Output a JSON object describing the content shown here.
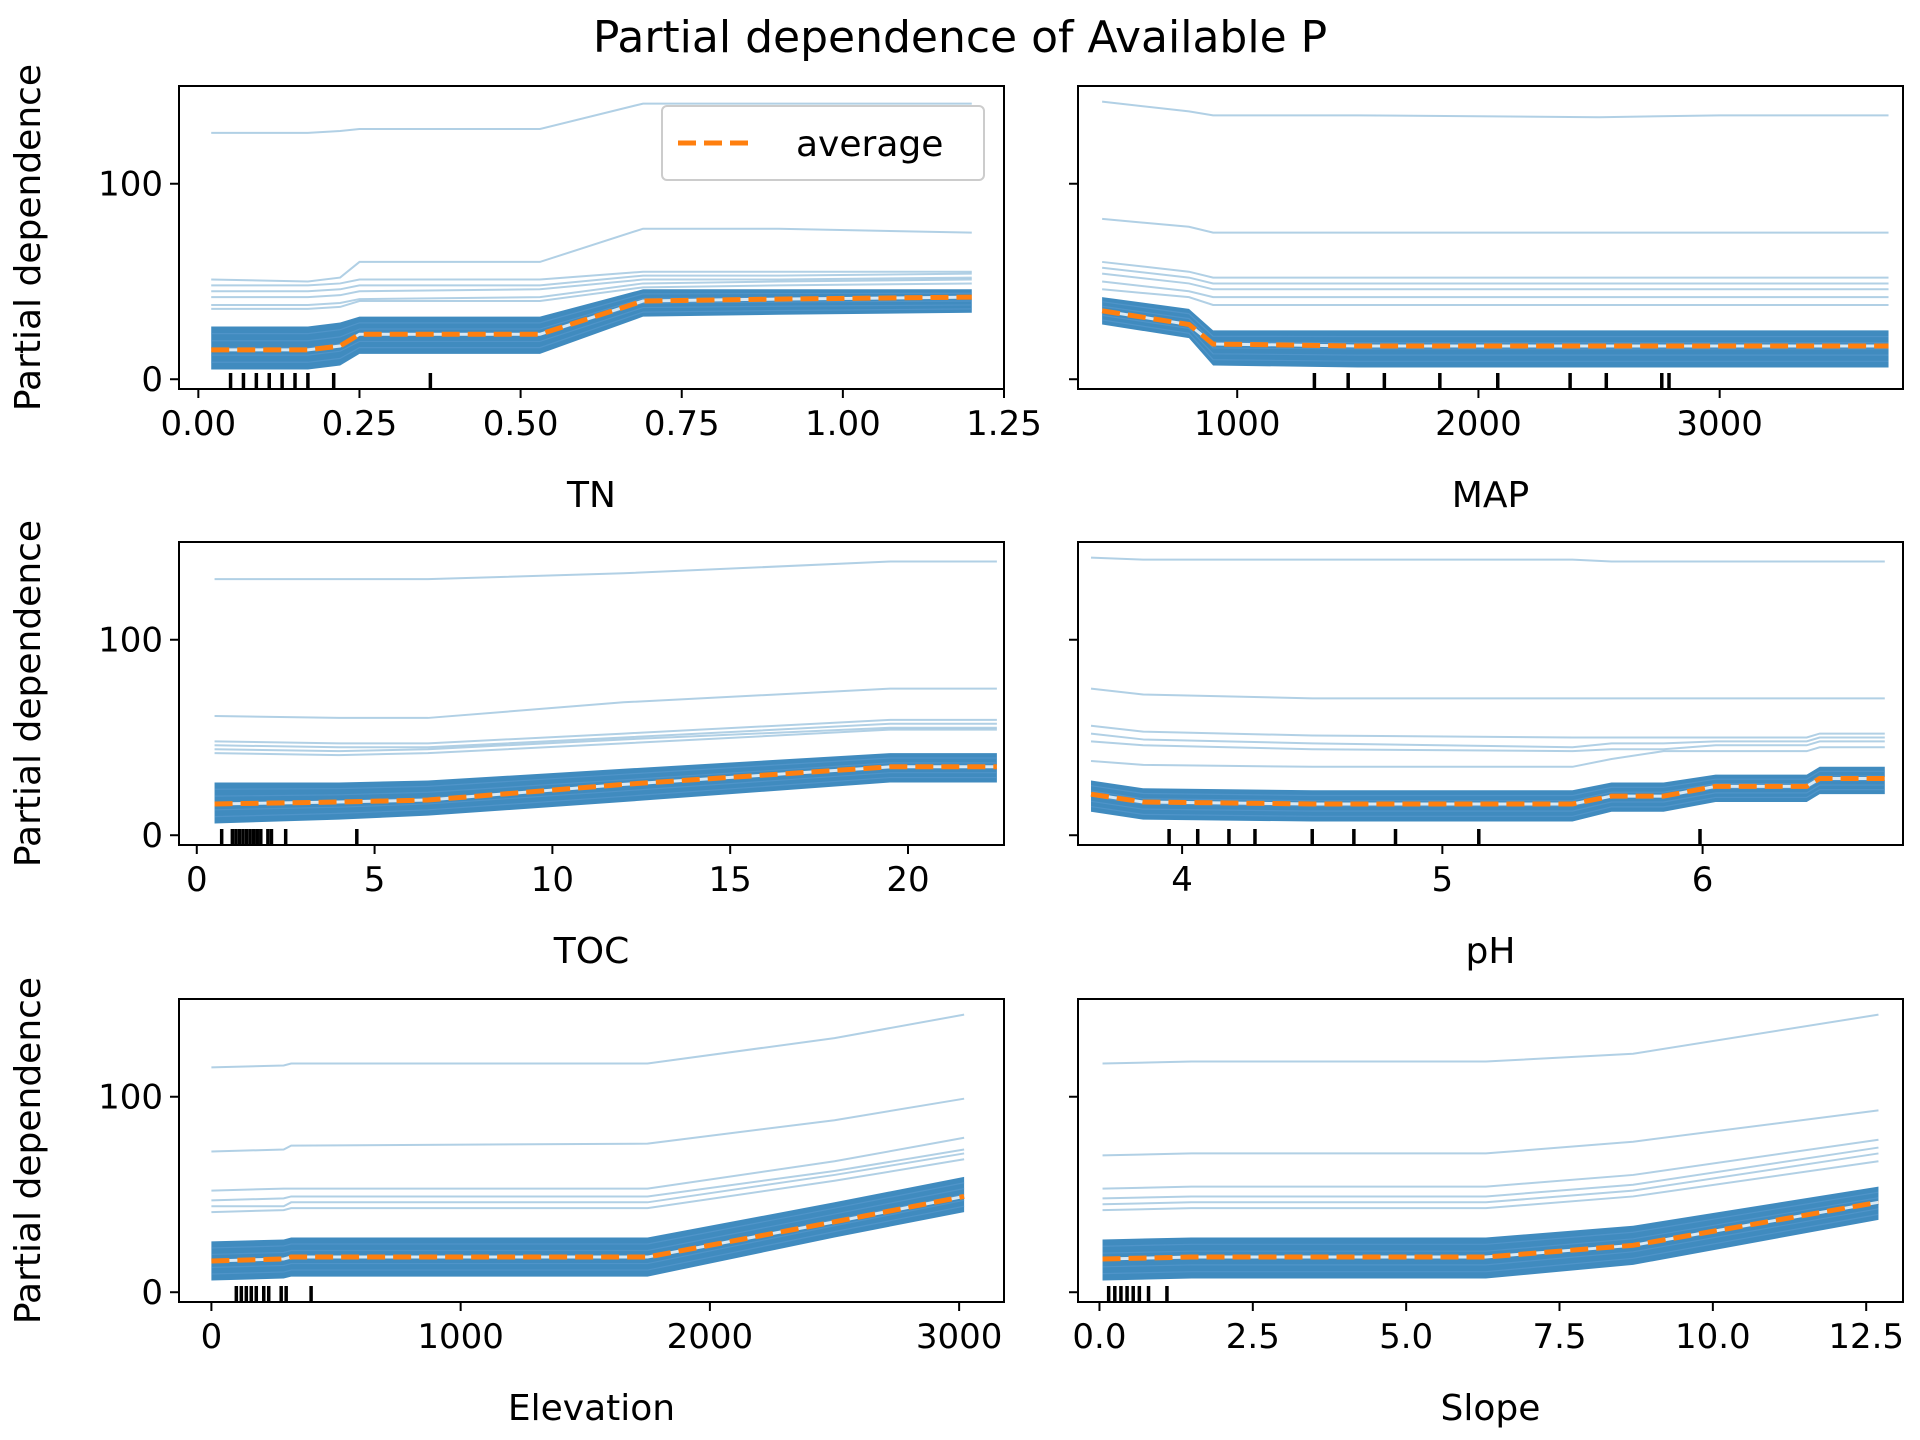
{
  "title": "Partial dependence of Available P",
  "colors": {
    "ice_line": "#1f77b4",
    "average_line": "#ff7f0e",
    "rug": "#000000",
    "axes": "#000000",
    "legend_border": "#cccccc"
  },
  "legend": {
    "label": "average",
    "placement": "upper-right",
    "panel": 0
  },
  "chart_data": [
    {
      "type": "line",
      "feature": "TN",
      "xlabel": "TN",
      "ylabel": "Partial dependence",
      "xlim": [
        -0.03,
        1.25
      ],
      "ylim": [
        -5,
        150
      ],
      "xticks": [
        0.0,
        0.25,
        0.5,
        0.75,
        1.0,
        1.25
      ],
      "xticklabels": [
        "0.00",
        "0.25",
        "0.50",
        "0.75",
        "1.00",
        "1.25"
      ],
      "yticks": [
        0,
        100
      ],
      "yticklabels": [
        "0",
        "100"
      ],
      "show_yticklabels": true,
      "x": [
        0.02,
        0.17,
        0.22,
        0.25,
        0.53,
        0.69,
        0.9,
        1.2
      ],
      "average": [
        15,
        15,
        17,
        23,
        23,
        40,
        41,
        42
      ],
      "ice_curves": [
        [
          126,
          126,
          127,
          128,
          128,
          141,
          141,
          141
        ],
        [
          51,
          50,
          52,
          60,
          60,
          77,
          77,
          75
        ],
        [
          48,
          48,
          49,
          51,
          51,
          55,
          55,
          55
        ],
        [
          45,
          45,
          46,
          48,
          48,
          53,
          53,
          54
        ],
        [
          42,
          42,
          43,
          45,
          46,
          51,
          51,
          52
        ],
        [
          38,
          38,
          39,
          41,
          42,
          49,
          50,
          51
        ],
        [
          36,
          36,
          37,
          40,
          40,
          47,
          48,
          49
        ]
      ],
      "band": {
        "upper": [
          27,
          27,
          29,
          32,
          32,
          46,
          46,
          46
        ],
        "lower": [
          5,
          5,
          7,
          13,
          13,
          32,
          33,
          34
        ]
      },
      "rug": [
        0.05,
        0.07,
        0.09,
        0.11,
        0.13,
        0.15,
        0.17,
        0.21,
        0.36
      ]
    },
    {
      "type": "line",
      "feature": "MAP",
      "xlabel": "MAP",
      "ylabel": "",
      "xlim": [
        340,
        3760
      ],
      "ylim": [
        -5,
        150
      ],
      "xticks": [
        1000,
        2000,
        3000
      ],
      "xticklabels": [
        "1000",
        "2000",
        "3000"
      ],
      "yticks": [
        0,
        100
      ],
      "yticklabels": [
        "0",
        "100"
      ],
      "show_yticklabels": false,
      "x": [
        440,
        800,
        900,
        1500,
        2500,
        3000,
        3700
      ],
      "average": [
        35,
        28,
        18,
        17,
        17,
        17,
        17
      ],
      "ice_curves": [
        [
          142,
          137,
          135,
          135,
          134,
          135,
          135
        ],
        [
          82,
          78,
          75,
          75,
          75,
          75,
          75
        ],
        [
          60,
          55,
          52,
          52,
          52,
          52,
          52
        ],
        [
          57,
          52,
          49,
          49,
          49,
          49,
          49
        ],
        [
          54,
          49,
          46,
          46,
          46,
          46,
          46
        ],
        [
          50,
          45,
          42,
          42,
          42,
          42,
          42
        ],
        [
          46,
          42,
          38,
          38,
          38,
          38,
          38
        ]
      ],
      "band": {
        "upper": [
          42,
          36,
          25,
          25,
          25,
          25,
          25
        ],
        "lower": [
          28,
          21,
          7,
          6,
          6,
          6,
          6
        ]
      },
      "rug": [
        1320,
        1460,
        1610,
        1840,
        2080,
        2380,
        2530,
        2760,
        2790
      ]
    },
    {
      "type": "line",
      "feature": "TOC",
      "xlabel": "TOC",
      "ylabel": "Partial dependence",
      "xlim": [
        -0.5,
        22.7
      ],
      "ylim": [
        -5,
        150
      ],
      "xticks": [
        0,
        5,
        10,
        15,
        20
      ],
      "xticklabels": [
        "0",
        "5",
        "10",
        "15",
        "20"
      ],
      "yticks": [
        0,
        100
      ],
      "yticklabels": [
        "0",
        "100"
      ],
      "show_yticklabels": true,
      "x": [
        0.5,
        4,
        6.5,
        12,
        19.5,
        22.5
      ],
      "average": [
        16,
        17,
        18,
        26,
        35,
        35
      ],
      "ice_curves": [
        [
          131,
          131,
          131,
          134,
          140,
          140
        ],
        [
          61,
          60,
          60,
          68,
          75,
          75
        ],
        [
          48,
          47,
          47,
          52,
          59,
          59
        ],
        [
          46,
          45,
          45,
          50,
          57,
          57
        ],
        [
          44,
          43,
          44,
          49,
          55,
          55
        ],
        [
          42,
          41,
          42,
          47,
          54,
          54
        ]
      ],
      "band": {
        "upper": [
          27,
          27,
          28,
          34,
          42,
          42
        ],
        "lower": [
          6,
          8,
          10,
          17,
          27,
          27
        ]
      },
      "rug": [
        0.7,
        1.0,
        1.1,
        1.2,
        1.3,
        1.4,
        1.5,
        1.6,
        1.7,
        1.8,
        2.0,
        2.1,
        2.5,
        4.5
      ]
    },
    {
      "type": "line",
      "feature": "pH",
      "xlabel": "pH",
      "ylabel": "",
      "xlim": [
        3.6,
        6.77
      ],
      "ylim": [
        -5,
        150
      ],
      "xticks": [
        4,
        5,
        6
      ],
      "xticklabels": [
        "4",
        "5",
        "6"
      ],
      "yticks": [
        0,
        100
      ],
      "yticklabels": [
        "0",
        "100"
      ],
      "show_yticklabels": false,
      "x": [
        3.65,
        3.85,
        4.5,
        5.5,
        5.65,
        5.85,
        6.05,
        6.4,
        6.45,
        6.7
      ],
      "average": [
        21,
        17,
        16,
        16,
        20,
        20,
        25,
        25,
        29,
        29
      ],
      "ice_curves": [
        [
          142,
          141,
          141,
          141,
          140,
          140,
          140,
          140,
          140,
          140
        ],
        [
          75,
          72,
          70,
          70,
          70,
          70,
          70,
          70,
          70,
          70
        ],
        [
          56,
          53,
          51,
          50,
          50,
          50,
          50,
          50,
          52,
          52
        ],
        [
          52,
          49,
          47,
          45,
          47,
          47,
          48,
          48,
          50,
          50
        ],
        [
          48,
          46,
          44,
          43,
          44,
          44,
          46,
          46,
          48,
          48
        ],
        [
          38,
          36,
          35,
          35,
          39,
          43,
          43,
          43,
          45,
          45
        ]
      ],
      "band": {
        "upper": [
          28,
          24,
          23,
          23,
          27,
          27,
          31,
          31,
          35,
          35
        ],
        "lower": [
          12,
          8,
          7,
          7,
          12,
          12,
          17,
          17,
          21,
          21
        ]
      },
      "rug": [
        3.95,
        4.06,
        4.18,
        4.28,
        4.5,
        4.66,
        4.82,
        5.14,
        5.99
      ]
    },
    {
      "type": "line",
      "feature": "Elevation",
      "xlabel": "Elevation",
      "ylabel": "Partial dependence",
      "xlim": [
        -130,
        3180
      ],
      "ylim": [
        -5,
        150
      ],
      "xticks": [
        0,
        1000,
        2000,
        3000
      ],
      "xticklabels": [
        "0",
        "1000",
        "2000",
        "3000"
      ],
      "yticks": [
        0,
        100
      ],
      "yticklabels": [
        "0",
        "100"
      ],
      "show_yticklabels": true,
      "x": [
        0,
        290,
        320,
        1750,
        2500,
        3020
      ],
      "average": [
        16,
        17,
        18,
        18,
        36,
        49
      ],
      "ice_curves": [
        [
          115,
          116,
          117,
          117,
          130,
          142
        ],
        [
          72,
          73,
          75,
          76,
          88,
          99
        ],
        [
          52,
          53,
          53,
          53,
          67,
          79
        ],
        [
          47,
          48,
          49,
          49,
          62,
          73
        ],
        [
          44,
          44,
          46,
          46,
          60,
          71
        ],
        [
          41,
          42,
          43,
          43,
          57,
          68
        ]
      ],
      "band": {
        "upper": [
          26,
          27,
          28,
          28,
          46,
          59
        ],
        "lower": [
          6,
          7,
          8,
          8,
          28,
          41
        ]
      },
      "rug": [
        100,
        120,
        140,
        160,
        180,
        210,
        230,
        280,
        300,
        400
      ]
    },
    {
      "type": "line",
      "feature": "Slope",
      "xlabel": "Slope",
      "ylabel": "",
      "xlim": [
        -0.35,
        13.1
      ],
      "ylim": [
        -5,
        150
      ],
      "xticks": [
        0.0,
        2.5,
        5.0,
        7.5,
        10.0,
        12.5
      ],
      "xticklabels": [
        "0.0",
        "2.5",
        "5.0",
        "7.5",
        "10.0",
        "12.5"
      ],
      "yticks": [
        0,
        100
      ],
      "yticklabels": [
        "0",
        "100"
      ],
      "show_yticklabels": false,
      "x": [
        0.05,
        1.5,
        6.3,
        8.7,
        12.7
      ],
      "average": [
        17,
        18,
        18,
        24,
        46
      ],
      "ice_curves": [
        [
          117,
          118,
          118,
          122,
          142
        ],
        [
          70,
          71,
          71,
          77,
          93
        ],
        [
          53,
          54,
          54,
          60,
          78
        ],
        [
          48,
          49,
          49,
          55,
          74
        ],
        [
          45,
          46,
          46,
          52,
          71
        ],
        [
          42,
          43,
          43,
          49,
          67
        ]
      ],
      "band": {
        "upper": [
          27,
          28,
          28,
          34,
          54
        ],
        "lower": [
          6,
          7,
          7,
          14,
          37
        ]
      },
      "rug": [
        0.15,
        0.25,
        0.35,
        0.45,
        0.55,
        0.65,
        0.8,
        1.1
      ]
    }
  ]
}
